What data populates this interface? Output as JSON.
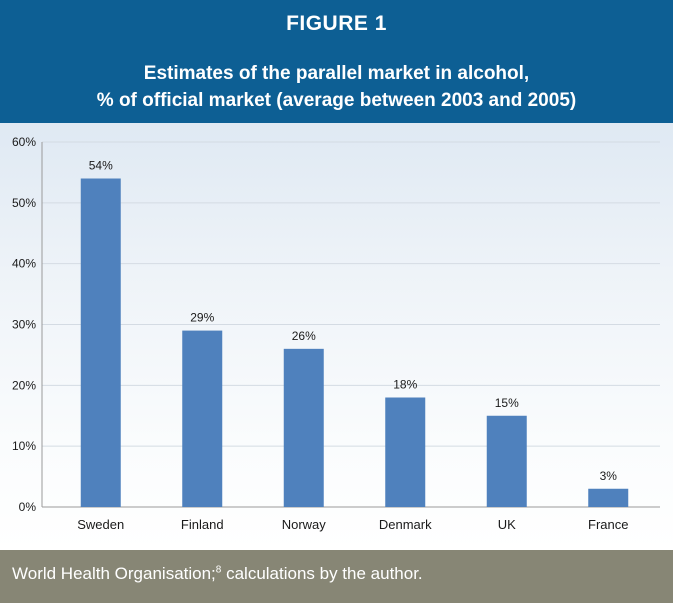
{
  "header": {
    "figure_label": "FIGURE 1",
    "title_line1": "Estimates of the parallel market in alcohol,",
    "title_line2": "% of official market (average between 2003 and 2005)"
  },
  "footer": {
    "source_prefix": "World Health Organisation;",
    "source_ref": "8",
    "source_suffix": " calculations by the author."
  },
  "colors": {
    "header_bg": "#0d5f94",
    "bar": "#4f81bd",
    "footer_bg": "#878675"
  },
  "chart_data": {
    "type": "bar",
    "title": "Estimates of the parallel market in alcohol, % of official market (average between 2003 and 2005)",
    "categories": [
      "Sweden",
      "Finland",
      "Norway",
      "Denmark",
      "UK",
      "France"
    ],
    "values": [
      54,
      29,
      26,
      18,
      15,
      3
    ],
    "data_labels": [
      "54%",
      "29%",
      "26%",
      "18%",
      "15%",
      "3%"
    ],
    "xlabel": "",
    "ylabel": "",
    "ylim": [
      0,
      60
    ],
    "yticks": [
      0,
      10,
      20,
      30,
      40,
      50,
      60
    ],
    "ytick_labels": [
      "0%",
      "10%",
      "20%",
      "30%",
      "40%",
      "50%",
      "60%"
    ],
    "grid": true,
    "legend": "none"
  }
}
